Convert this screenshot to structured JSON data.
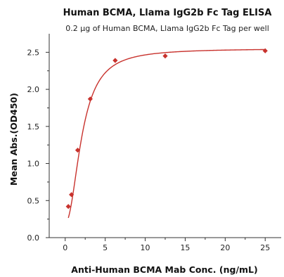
{
  "chart_data": {
    "type": "scatter",
    "title": "Human BCMA, Llama IgG2b Fc Tag ELISA",
    "subtitle": "0.2 μg of Human BCMA, Llama IgG2b Fc Tag per well",
    "xlabel": "Anti-Human BCMA Mab Conc. (ng/mL)",
    "ylabel": "Mean Abs.(OD450)",
    "xlim": [
      -2,
      27
    ],
    "ylim": [
      0,
      2.75
    ],
    "xticks": [
      0,
      5,
      10,
      15,
      20,
      25
    ],
    "yticks": [
      0.0,
      0.5,
      1.0,
      1.5,
      2.0,
      2.5
    ],
    "xtick_labels": [
      "0",
      "5",
      "10",
      "15",
      "20",
      "25"
    ],
    "ytick_labels": [
      "0.0",
      "0.5",
      "1.0",
      "1.5",
      "2.0",
      "2.5"
    ],
    "grid": false,
    "series": [
      {
        "x": [
          0.39,
          0.78,
          1.56,
          3.13,
          6.25,
          12.5,
          25
        ],
        "y": [
          0.42,
          0.58,
          1.18,
          1.87,
          2.39,
          2.45,
          2.52
        ],
        "marker": "diamond",
        "fit": "4PL",
        "color": "#c8322d"
      }
    ]
  }
}
